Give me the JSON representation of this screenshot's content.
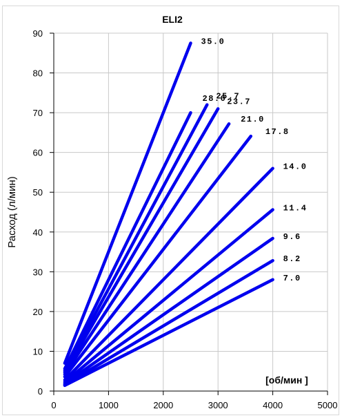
{
  "chart_data": {
    "type": "line",
    "title": "ELI2",
    "xlabel": "[об/мин ]",
    "ylabel": "Расход (л/мин)",
    "xlim": [
      0,
      5000
    ],
    "ylim": [
      0,
      90
    ],
    "x_ticks": [
      "0",
      "1000",
      "2000",
      "3000",
      "4000",
      "5000"
    ],
    "y_ticks": [
      "0",
      "10",
      "20",
      "30",
      "40",
      "50",
      "60",
      "70",
      "80",
      "90"
    ],
    "grid": true,
    "color": "#0000ee",
    "series": [
      {
        "name": "35.0",
        "x": [
          200,
          2500
        ],
        "y": [
          7.0,
          87.5
        ]
      },
      {
        "name": "28.0",
        "x": [
          200,
          2500
        ],
        "y": [
          5.6,
          70.0
        ]
      },
      {
        "name": "25.7",
        "x": [
          200,
          2800
        ],
        "y": [
          5.1,
          72.0
        ]
      },
      {
        "name": "23.7",
        "x": [
          200,
          3000
        ],
        "y": [
          4.7,
          71.0
        ]
      },
      {
        "name": "21.0",
        "x": [
          200,
          3200
        ],
        "y": [
          4.2,
          67.2
        ]
      },
      {
        "name": "17.8",
        "x": [
          200,
          3600
        ],
        "y": [
          3.6,
          64.1
        ]
      },
      {
        "name": "14.0",
        "x": [
          200,
          4000
        ],
        "y": [
          2.8,
          56.0
        ]
      },
      {
        "name": "11.4",
        "x": [
          200,
          4000
        ],
        "y": [
          2.3,
          45.6
        ]
      },
      {
        "name": "9.6",
        "x": [
          200,
          4000
        ],
        "y": [
          1.9,
          38.4
        ]
      },
      {
        "name": "8.2",
        "x": [
          200,
          4000
        ],
        "y": [
          1.6,
          32.8
        ]
      },
      {
        "name": "7.0",
        "x": [
          200,
          4000
        ],
        "y": [
          1.4,
          28.0
        ]
      }
    ]
  }
}
